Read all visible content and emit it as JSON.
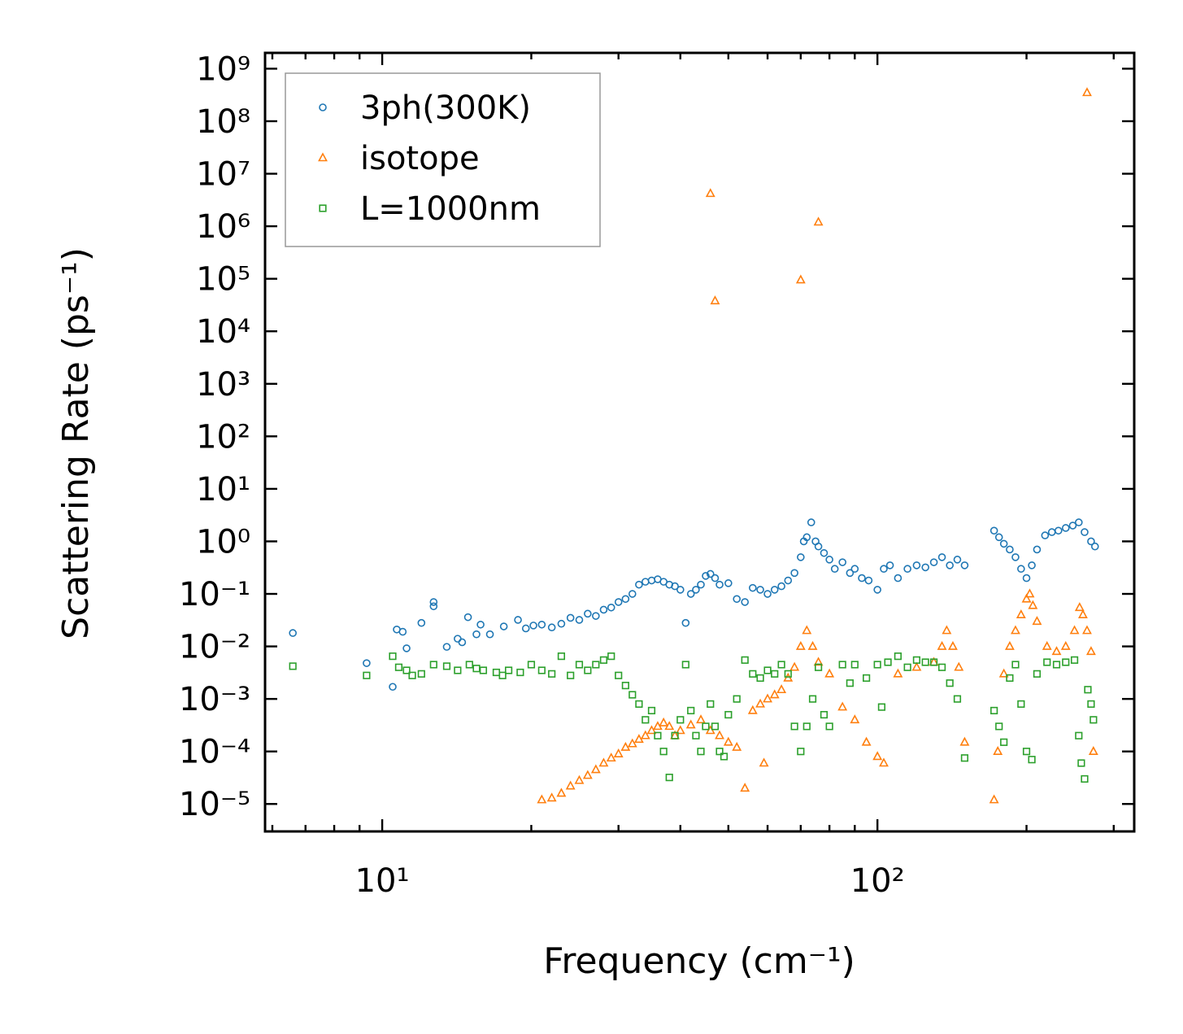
{
  "chart_data": {
    "type": "scatter",
    "title": "",
    "xlabel": "Frequency (cm⁻¹)",
    "ylabel": "Scattering Rate (ps⁻¹)",
    "x_scale": "log",
    "y_scale": "log",
    "xlim": [
      5.8,
      330
    ],
    "ylim": [
      3e-06,
      2000000000.0
    ],
    "x_ticks": [
      {
        "value": 10,
        "label": "10¹"
      },
      {
        "value": 100,
        "label": "10²"
      }
    ],
    "y_ticks": [
      {
        "value": 1000000000.0,
        "label": "10⁹"
      },
      {
        "value": 100000000.0,
        "label": "10⁸"
      },
      {
        "value": 10000000.0,
        "label": "10⁷"
      },
      {
        "value": 1000000.0,
        "label": "10⁶"
      },
      {
        "value": 100000.0,
        "label": "10⁵"
      },
      {
        "value": 10000.0,
        "label": "10⁴"
      },
      {
        "value": 1000.0,
        "label": "10³"
      },
      {
        "value": 100.0,
        "label": "10²"
      },
      {
        "value": 10.0,
        "label": "10¹"
      },
      {
        "value": 1,
        "label": "10⁰"
      },
      {
        "value": 0.1,
        "label": "10⁻¹"
      },
      {
        "value": 0.01,
        "label": "10⁻²"
      },
      {
        "value": 0.001,
        "label": "10⁻³"
      },
      {
        "value": 0.0001,
        "label": "10⁻⁴"
      },
      {
        "value": 1e-05,
        "label": "10⁻⁵"
      }
    ],
    "grid": false,
    "legend_position": "top-left",
    "series": [
      {
        "name": "3ph(300K)",
        "color": "#1f77b4",
        "marker": "circle",
        "points": [
          [
            6.6,
            0.018
          ],
          [
            9.3,
            0.0048
          ],
          [
            10.5,
            0.0017
          ],
          [
            10.7,
            0.021
          ],
          [
            11.0,
            0.019
          ],
          [
            11.2,
            0.0092
          ],
          [
            12.0,
            0.028
          ],
          [
            12.7,
            0.07
          ],
          [
            12.7,
            0.058
          ],
          [
            13.5,
            0.0098
          ],
          [
            14.2,
            0.014
          ],
          [
            14.5,
            0.012
          ],
          [
            14.9,
            0.036
          ],
          [
            15.5,
            0.017
          ],
          [
            15.8,
            0.026
          ],
          [
            16.5,
            0.017
          ],
          [
            17.6,
            0.024
          ],
          [
            18.8,
            0.032
          ],
          [
            19.5,
            0.022
          ],
          [
            20.2,
            0.025
          ],
          [
            21.0,
            0.026
          ],
          [
            22.0,
            0.023
          ],
          [
            23.0,
            0.027
          ],
          [
            24.0,
            0.035
          ],
          [
            25.0,
            0.032
          ],
          [
            26.0,
            0.042
          ],
          [
            27.0,
            0.038
          ],
          [
            28.0,
            0.05
          ],
          [
            29.0,
            0.055
          ],
          [
            30.0,
            0.07
          ],
          [
            31.0,
            0.08
          ],
          [
            32.0,
            0.1
          ],
          [
            33.0,
            0.15
          ],
          [
            34.0,
            0.17
          ],
          [
            35.0,
            0.18
          ],
          [
            36.0,
            0.19
          ],
          [
            37.0,
            0.17
          ],
          [
            38.0,
            0.15
          ],
          [
            39.0,
            0.14
          ],
          [
            40.0,
            0.12
          ],
          [
            41.0,
            0.028
          ],
          [
            42.0,
            0.1
          ],
          [
            43.0,
            0.12
          ],
          [
            44.0,
            0.15
          ],
          [
            45.0,
            0.22
          ],
          [
            46.0,
            0.24
          ],
          [
            47.0,
            0.2
          ],
          [
            48.0,
            0.15
          ],
          [
            50.0,
            0.16
          ],
          [
            52.0,
            0.08
          ],
          [
            54.0,
            0.07
          ],
          [
            56.0,
            0.13
          ],
          [
            58.0,
            0.12
          ],
          [
            60.0,
            0.1
          ],
          [
            62.0,
            0.12
          ],
          [
            64.0,
            0.14
          ],
          [
            66.0,
            0.18
          ],
          [
            68.0,
            0.25
          ],
          [
            70.0,
            0.5
          ],
          [
            71.0,
            1.0
          ],
          [
            72.0,
            1.2
          ],
          [
            73.5,
            2.3
          ],
          [
            75.0,
            1.0
          ],
          [
            76.0,
            0.8
          ],
          [
            78.0,
            0.6
          ],
          [
            80.0,
            0.45
          ],
          [
            82.0,
            0.3
          ],
          [
            85.0,
            0.4
          ],
          [
            88.0,
            0.25
          ],
          [
            90.0,
            0.3
          ],
          [
            93.0,
            0.2
          ],
          [
            96.0,
            0.18
          ],
          [
            100.0,
            0.12
          ],
          [
            103.0,
            0.3
          ],
          [
            106.0,
            0.35
          ],
          [
            110.0,
            0.2
          ],
          [
            115.0,
            0.3
          ],
          [
            120.0,
            0.35
          ],
          [
            125.0,
            0.32
          ],
          [
            130.0,
            0.4
          ],
          [
            135.0,
            0.5
          ],
          [
            140.0,
            0.35
          ],
          [
            145.0,
            0.45
          ],
          [
            150.0,
            0.35
          ],
          [
            172.0,
            1.6
          ],
          [
            176.0,
            1.2
          ],
          [
            180.0,
            0.9
          ],
          [
            185.0,
            0.7
          ],
          [
            190.0,
            0.5
          ],
          [
            195.0,
            0.3
          ],
          [
            200.0,
            0.2
          ],
          [
            205.0,
            0.35
          ],
          [
            210.0,
            0.7
          ],
          [
            218.0,
            1.3
          ],
          [
            225.0,
            1.5
          ],
          [
            232.0,
            1.6
          ],
          [
            240.0,
            1.8
          ],
          [
            248.0,
            2.0
          ],
          [
            255.0,
            2.3
          ],
          [
            262.0,
            1.5
          ],
          [
            270.0,
            1.0
          ],
          [
            275.0,
            0.8
          ]
        ]
      },
      {
        "name": "isotope",
        "color": "#ff7f0e",
        "marker": "triangle",
        "points": [
          [
            21.0,
            1.2e-05
          ],
          [
            22.0,
            1.3e-05
          ],
          [
            23.0,
            1.6e-05
          ],
          [
            24.0,
            2.2e-05
          ],
          [
            25.0,
            2.8e-05
          ],
          [
            26.0,
            3.5e-05
          ],
          [
            27.0,
            4.5e-05
          ],
          [
            28.0,
            6e-05
          ],
          [
            29.0,
            7.5e-05
          ],
          [
            30.0,
            9e-05
          ],
          [
            31.0,
            0.00012
          ],
          [
            32.0,
            0.00014
          ],
          [
            33.0,
            0.00017
          ],
          [
            34.0,
            0.0002
          ],
          [
            35.0,
            0.00025
          ],
          [
            36.0,
            0.0003
          ],
          [
            37.0,
            0.00035
          ],
          [
            38.0,
            0.0003
          ],
          [
            39.0,
            0.0002
          ],
          [
            40.0,
            0.00025
          ],
          [
            42.0,
            0.00032
          ],
          [
            44.0,
            0.0004
          ],
          [
            46.0,
            0.00025
          ],
          [
            48.0,
            0.0002
          ],
          [
            50.0,
            0.00015
          ],
          [
            52.0,
            0.00012
          ],
          [
            54.0,
            2e-05
          ],
          [
            56.0,
            0.0006
          ],
          [
            58.0,
            0.0008
          ],
          [
            59.0,
            6e-05
          ],
          [
            60.0,
            0.001
          ],
          [
            62.0,
            0.0012
          ],
          [
            64.0,
            0.0015
          ],
          [
            66.0,
            0.0025
          ],
          [
            68.0,
            0.004
          ],
          [
            70.0,
            0.01
          ],
          [
            72.0,
            0.02
          ],
          [
            74.0,
            0.01
          ],
          [
            76.0,
            0.005
          ],
          [
            80.0,
            0.003
          ],
          [
            85.0,
            0.0007
          ],
          [
            90.0,
            0.0004
          ],
          [
            95.0,
            0.00015
          ],
          [
            100.0,
            8e-05
          ],
          [
            103.0,
            6e-05
          ],
          [
            110.0,
            0.003
          ],
          [
            120.0,
            0.004
          ],
          [
            130.0,
            0.005
          ],
          [
            135.0,
            0.01
          ],
          [
            138.0,
            0.02
          ],
          [
            142.0,
            0.01
          ],
          [
            146.0,
            0.004
          ],
          [
            150.0,
            0.00015
          ],
          [
            172.0,
            1.2e-05
          ],
          [
            175.0,
            0.0001
          ],
          [
            180.0,
            0.003
          ],
          [
            185.0,
            0.01
          ],
          [
            190.0,
            0.02
          ],
          [
            195.0,
            0.04
          ],
          [
            200.0,
            0.08
          ],
          [
            203.0,
            0.1
          ],
          [
            206.0,
            0.06
          ],
          [
            210.0,
            0.03
          ],
          [
            220.0,
            0.01
          ],
          [
            230.0,
            0.008
          ],
          [
            240.0,
            0.01
          ],
          [
            250.0,
            0.02
          ],
          [
            256.0,
            0.055
          ],
          [
            260.0,
            0.04
          ],
          [
            265.0,
            0.02
          ],
          [
            270.0,
            0.008
          ],
          [
            273.0,
            0.0001
          ],
          [
            46.0,
            4200000.0
          ],
          [
            47.0,
            38000.0
          ],
          [
            70.0,
            95000.0
          ],
          [
            76.0,
            1200000.0
          ],
          [
            265.0,
            350000000.0
          ]
        ]
      },
      {
        "name": "L=1000nm",
        "color": "#2ca02c",
        "marker": "square",
        "points": [
          [
            6.6,
            0.0042
          ],
          [
            9.3,
            0.0028
          ],
          [
            10.5,
            0.0065
          ],
          [
            10.8,
            0.004
          ],
          [
            11.2,
            0.0035
          ],
          [
            11.5,
            0.0028
          ],
          [
            12.0,
            0.003
          ],
          [
            12.7,
            0.0045
          ],
          [
            13.5,
            0.0042
          ],
          [
            14.2,
            0.0035
          ],
          [
            15.0,
            0.0045
          ],
          [
            15.5,
            0.0038
          ],
          [
            16.0,
            0.0035
          ],
          [
            17.0,
            0.0032
          ],
          [
            17.5,
            0.0028
          ],
          [
            18.0,
            0.0035
          ],
          [
            19.0,
            0.0032
          ],
          [
            20.0,
            0.0045
          ],
          [
            21.0,
            0.0035
          ],
          [
            22.0,
            0.003
          ],
          [
            23.0,
            0.0065
          ],
          [
            24.0,
            0.0028
          ],
          [
            25.0,
            0.0045
          ],
          [
            26.0,
            0.0035
          ],
          [
            27.0,
            0.0045
          ],
          [
            28.0,
            0.0055
          ],
          [
            29.0,
            0.0065
          ],
          [
            30.0,
            0.0028
          ],
          [
            31.0,
            0.0018
          ],
          [
            32.0,
            0.0012
          ],
          [
            33.0,
            0.0008
          ],
          [
            34.0,
            0.0004
          ],
          [
            35.0,
            0.0006
          ],
          [
            36.0,
            0.0002
          ],
          [
            37.0,
            0.0001
          ],
          [
            38.0,
            3.2e-05
          ],
          [
            39.0,
            0.0002
          ],
          [
            40.0,
            0.0004
          ],
          [
            41.0,
            0.0045
          ],
          [
            42.0,
            0.0006
          ],
          [
            43.0,
            0.0002
          ],
          [
            44.0,
            0.0001
          ],
          [
            45.0,
            0.0003
          ],
          [
            46.0,
            0.0008
          ],
          [
            47.0,
            0.0003
          ],
          [
            48.0,
            0.0001
          ],
          [
            49.0,
            8e-05
          ],
          [
            50.0,
            0.0005
          ],
          [
            52.0,
            0.001
          ],
          [
            54.0,
            0.0055
          ],
          [
            56.0,
            0.003
          ],
          [
            58.0,
            0.0025
          ],
          [
            60.0,
            0.0035
          ],
          [
            62.0,
            0.003
          ],
          [
            64.0,
            0.0045
          ],
          [
            66.0,
            0.003
          ],
          [
            68.0,
            0.0003
          ],
          [
            70.0,
            0.0001
          ],
          [
            72.0,
            0.0003
          ],
          [
            74.0,
            0.001
          ],
          [
            76.0,
            0.004
          ],
          [
            78.0,
            0.0005
          ],
          [
            80.0,
            0.0003
          ],
          [
            85.0,
            0.0045
          ],
          [
            88.0,
            0.002
          ],
          [
            90.0,
            0.0045
          ],
          [
            95.0,
            0.0025
          ],
          [
            100.0,
            0.0045
          ],
          [
            102.0,
            0.0007
          ],
          [
            105.0,
            0.005
          ],
          [
            110.0,
            0.0065
          ],
          [
            115.0,
            0.004
          ],
          [
            120.0,
            0.0055
          ],
          [
            125.0,
            0.005
          ],
          [
            130.0,
            0.005
          ],
          [
            135.0,
            0.004
          ],
          [
            140.0,
            0.002
          ],
          [
            145.0,
            0.001
          ],
          [
            150.0,
            7.5e-05
          ],
          [
            172.0,
            0.0006
          ],
          [
            176.0,
            0.0003
          ],
          [
            180.0,
            0.00015
          ],
          [
            185.0,
            0.0025
          ],
          [
            190.0,
            0.0045
          ],
          [
            195.0,
            0.0008
          ],
          [
            200.0,
            0.0001
          ],
          [
            205.0,
            7e-05
          ],
          [
            210.0,
            0.003
          ],
          [
            220.0,
            0.005
          ],
          [
            230.0,
            0.0045
          ],
          [
            240.0,
            0.005
          ],
          [
            250.0,
            0.0055
          ],
          [
            255.0,
            0.0002
          ],
          [
            258.0,
            6e-05
          ],
          [
            262.0,
            3e-05
          ],
          [
            266.0,
            0.0015
          ],
          [
            270.0,
            0.0008
          ],
          [
            273.0,
            0.0004
          ]
        ]
      }
    ]
  }
}
